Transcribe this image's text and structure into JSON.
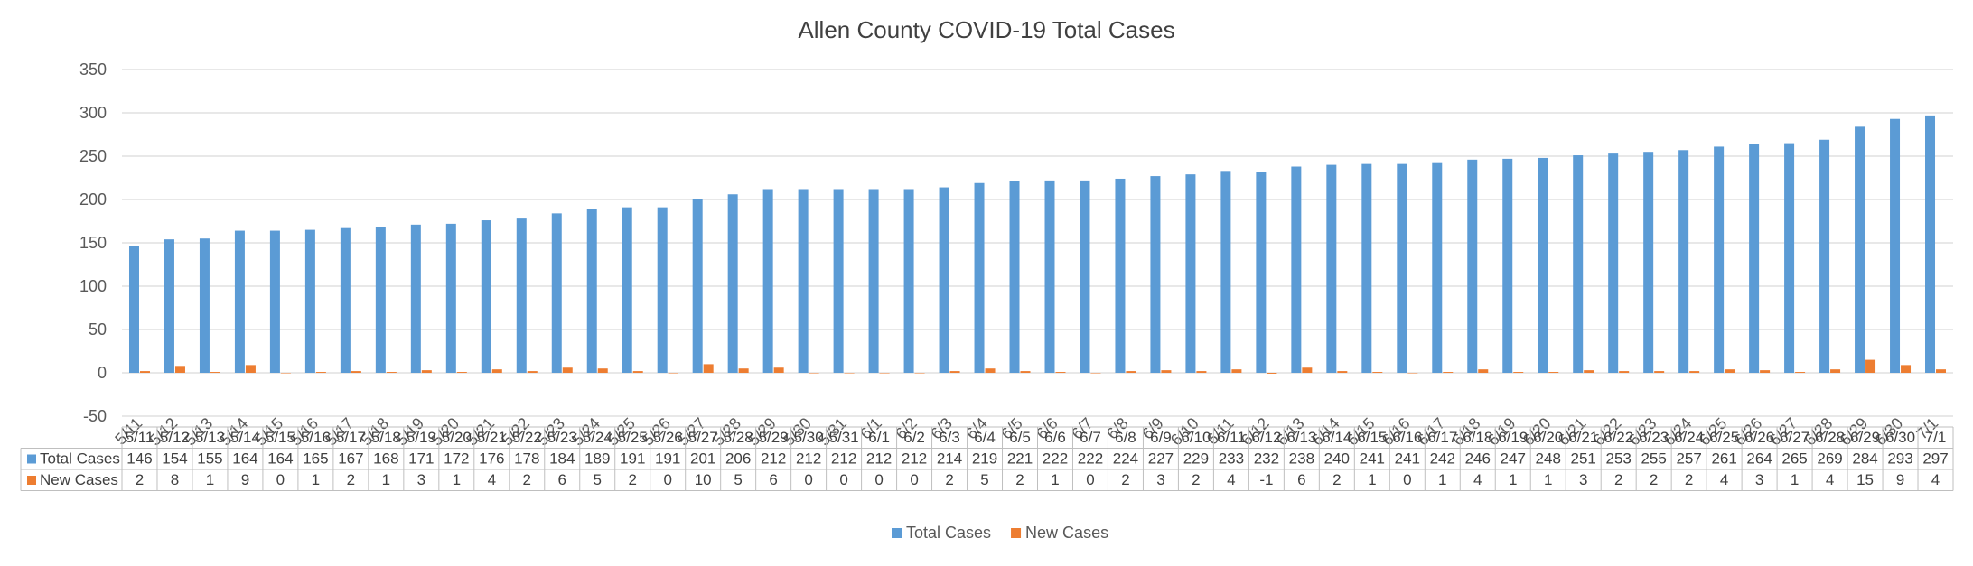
{
  "chart_data": {
    "type": "bar",
    "title": "Allen County COVID-19 Total Cases",
    "xlabel": "",
    "ylabel": "",
    "ylim": [
      -50,
      350
    ],
    "yticks": [
      350,
      300,
      250,
      200,
      150,
      100,
      50,
      0,
      -50
    ],
    "grid": true,
    "legend_position": "bottom",
    "categories": [
      "5/11",
      "5/12",
      "5/13",
      "5/14",
      "5/15",
      "5/16",
      "5/17",
      "5/18",
      "5/19",
      "5/20",
      "5/21",
      "5/22",
      "5/23",
      "5/24",
      "5/25",
      "5/26",
      "5/27",
      "5/28",
      "5/29",
      "5/30",
      "5/31",
      "6/1",
      "6/2",
      "6/3",
      "6/4",
      "6/5",
      "6/6",
      "6/7",
      "6/8",
      "6/9",
      "6/10",
      "6/11",
      "6/12",
      "6/13",
      "6/14",
      "6/15",
      "6/16",
      "6/17",
      "6/18",
      "6/19",
      "6/20",
      "6/21",
      "6/22",
      "6/23",
      "6/24",
      "6/25",
      "6/26",
      "6/27",
      "6/28",
      "6/29",
      "6/30",
      "7/1"
    ],
    "series": [
      {
        "name": "Total Cases",
        "color": "#5B9BD5",
        "values": [
          146,
          154,
          155,
          164,
          164,
          165,
          167,
          168,
          171,
          172,
          176,
          178,
          184,
          189,
          191,
          191,
          201,
          206,
          212,
          212,
          212,
          212,
          212,
          214,
          219,
          221,
          222,
          222,
          224,
          227,
          229,
          233,
          232,
          238,
          240,
          241,
          241,
          242,
          246,
          247,
          248,
          251,
          253,
          255,
          257,
          261,
          264,
          265,
          269,
          284,
          293,
          297
        ]
      },
      {
        "name": "New Cases",
        "color": "#ED7D31",
        "values": [
          2,
          8,
          1,
          9,
          0,
          1,
          2,
          1,
          3,
          1,
          4,
          2,
          6,
          5,
          2,
          0,
          10,
          5,
          6,
          0,
          0,
          0,
          0,
          2,
          5,
          2,
          1,
          0,
          2,
          3,
          2,
          4,
          -1,
          6,
          2,
          1,
          0,
          1,
          4,
          1,
          1,
          3,
          2,
          2,
          2,
          4,
          3,
          1,
          4,
          15,
          9,
          4
        ]
      }
    ],
    "data_table": true
  }
}
